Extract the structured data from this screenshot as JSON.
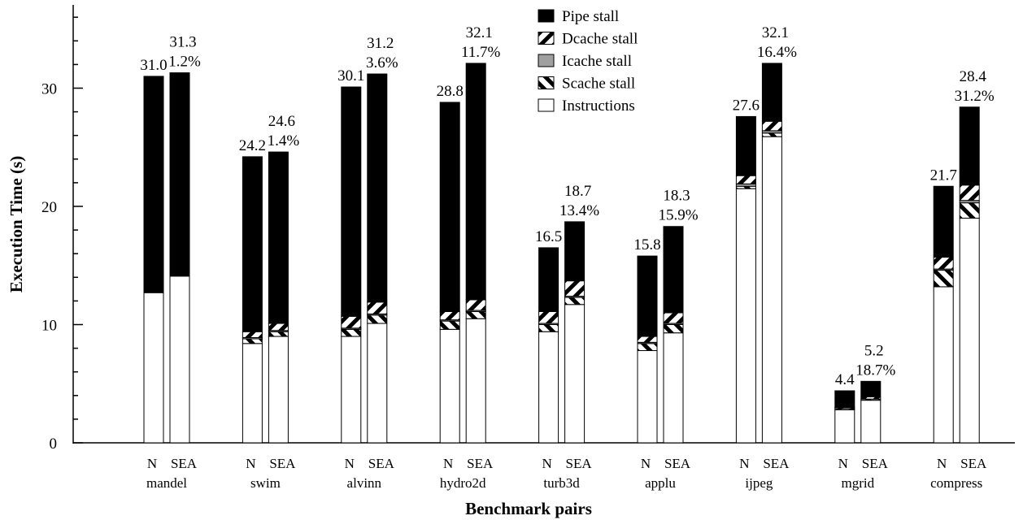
{
  "chart_data": {
    "type": "bar",
    "stacked": true,
    "xlabel": "Benchmark pairs",
    "ylabel": "Execution Time (s)",
    "ylim": [
      0,
      37.5
    ],
    "yticks": [
      0,
      10,
      20,
      30
    ],
    "grid": false,
    "legend_position": "top",
    "series_order": [
      "Instructions",
      "Scache stall",
      "Icache stall",
      "Dcache stall",
      "Pipe stall"
    ],
    "legend_order": [
      "Pipe stall",
      "Dcache stall",
      "Icache stall",
      "Scache stall",
      "Instructions"
    ],
    "series_styles": {
      "Instructions": {
        "fill": "#ffffff",
        "pattern": "none"
      },
      "Scache stall": {
        "fill": "#ffffff",
        "pattern": "backslash"
      },
      "Icache stall": {
        "fill": "#a0a0a0",
        "pattern": "none"
      },
      "Dcache stall": {
        "fill": "#ffffff",
        "pattern": "slash"
      },
      "Pipe stall": {
        "fill": "#000000",
        "pattern": "none"
      }
    },
    "groups": [
      {
        "name": "mandel",
        "bars": [
          {
            "label": "N",
            "total": "31.0",
            "values": {
              "Instructions": 12.7,
              "Scache stall": 0,
              "Icache stall": 0,
              "Dcache stall": 0,
              "Pipe stall": 18.3
            }
          },
          {
            "label": "SEA",
            "total": "31.3",
            "increase": "1.2%",
            "values": {
              "Instructions": 14.1,
              "Scache stall": 0,
              "Icache stall": 0,
              "Dcache stall": 0,
              "Pipe stall": 17.2
            }
          }
        ]
      },
      {
        "name": "swim",
        "bars": [
          {
            "label": "N",
            "total": "24.2",
            "values": {
              "Instructions": 8.4,
              "Scache stall": 0.4,
              "Icache stall": 0.1,
              "Dcache stall": 0.5,
              "Pipe stall": 14.8
            }
          },
          {
            "label": "SEA",
            "total": "24.6",
            "increase": "1.4%",
            "values": {
              "Instructions": 9.0,
              "Scache stall": 0.4,
              "Icache stall": 0.1,
              "Dcache stall": 0.6,
              "Pipe stall": 14.5
            }
          }
        ]
      },
      {
        "name": "alvinn",
        "bars": [
          {
            "label": "N",
            "total": "30.1",
            "values": {
              "Instructions": 9.0,
              "Scache stall": 0.6,
              "Icache stall": 0.1,
              "Dcache stall": 1.0,
              "Pipe stall": 19.4
            }
          },
          {
            "label": "SEA",
            "total": "31.2",
            "increase": "3.6%",
            "values": {
              "Instructions": 10.1,
              "Scache stall": 0.7,
              "Icache stall": 0.1,
              "Dcache stall": 1.0,
              "Pipe stall": 19.3
            }
          }
        ]
      },
      {
        "name": "hydro2d",
        "bars": [
          {
            "label": "N",
            "total": "28.8",
            "values": {
              "Instructions": 9.6,
              "Scache stall": 0.7,
              "Icache stall": 0.1,
              "Dcache stall": 0.7,
              "Pipe stall": 17.7
            }
          },
          {
            "label": "SEA",
            "total": "32.1",
            "increase": "11.7%",
            "values": {
              "Instructions": 10.5,
              "Scache stall": 0.6,
              "Icache stall": 0.1,
              "Dcache stall": 0.9,
              "Pipe stall": 20.0
            }
          }
        ]
      },
      {
        "name": "turb3d",
        "bars": [
          {
            "label": "N",
            "total": "16.5",
            "values": {
              "Instructions": 9.4,
              "Scache stall": 0.6,
              "Icache stall": 0.1,
              "Dcache stall": 1.0,
              "Pipe stall": 5.4
            }
          },
          {
            "label": "SEA",
            "total": "18.7",
            "increase": "13.4%",
            "values": {
              "Instructions": 11.7,
              "Scache stall": 0.6,
              "Icache stall": 0.1,
              "Dcache stall": 1.3,
              "Pipe stall": 5.0
            }
          }
        ]
      },
      {
        "name": "applu",
        "bars": [
          {
            "label": "N",
            "total": "15.8",
            "values": {
              "Instructions": 7.8,
              "Scache stall": 0.6,
              "Icache stall": 0.1,
              "Dcache stall": 0.5,
              "Pipe stall": 6.8
            }
          },
          {
            "label": "SEA",
            "total": "18.3",
            "increase": "15.9%",
            "values": {
              "Instructions": 9.3,
              "Scache stall": 0.7,
              "Icache stall": 0.1,
              "Dcache stall": 0.9,
              "Pipe stall": 7.3
            }
          }
        ]
      },
      {
        "name": "ijpeg",
        "bars": [
          {
            "label": "N",
            "total": "27.6",
            "values": {
              "Instructions": 21.5,
              "Scache stall": 0.2,
              "Icache stall": 0.2,
              "Dcache stall": 0.7,
              "Pipe stall": 5.0
            }
          },
          {
            "label": "SEA",
            "total": "32.1",
            "increase": "16.4%",
            "values": {
              "Instructions": 25.9,
              "Scache stall": 0.3,
              "Icache stall": 0.2,
              "Dcache stall": 0.8,
              "Pipe stall": 4.9
            }
          }
        ]
      },
      {
        "name": "mgrid",
        "bars": [
          {
            "label": "N",
            "total": "4.4",
            "values": {
              "Instructions": 2.8,
              "Scache stall": 0.1,
              "Icache stall": 0.0,
              "Dcache stall": 0.1,
              "Pipe stall": 1.4
            }
          },
          {
            "label": "SEA",
            "total": "5.2",
            "increase": "18.7%",
            "values": {
              "Instructions": 3.6,
              "Scache stall": 0.1,
              "Icache stall": 0.0,
              "Dcache stall": 0.2,
              "Pipe stall": 1.3
            }
          }
        ]
      },
      {
        "name": "compress",
        "bars": [
          {
            "label": "N",
            "total": "21.7",
            "values": {
              "Instructions": 13.2,
              "Scache stall": 1.4,
              "Icache stall": 0.1,
              "Dcache stall": 1.0,
              "Pipe stall": 6.0
            }
          },
          {
            "label": "SEA",
            "total": "28.4",
            "increase": "31.2%",
            "values": {
              "Instructions": 19.0,
              "Scache stall": 1.3,
              "Icache stall": 0.2,
              "Dcache stall": 1.3,
              "Pipe stall": 6.6
            }
          }
        ]
      }
    ]
  }
}
